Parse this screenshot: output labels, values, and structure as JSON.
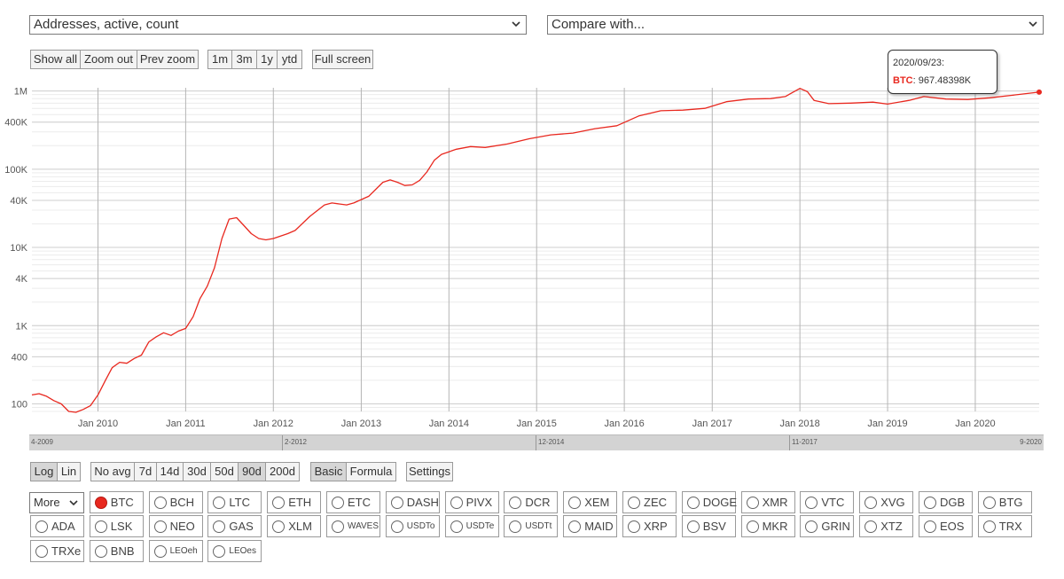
{
  "metric_select": {
    "value": "Addresses, active, count"
  },
  "compare_select": {
    "value": "Compare with..."
  },
  "zoom_buttons": [
    "Show all",
    "Zoom out",
    "Prev zoom"
  ],
  "range_buttons": [
    "1m",
    "3m",
    "1y",
    "ytd"
  ],
  "fullscreen_label": "Full screen",
  "tooltip": {
    "date": "2020/09/23:",
    "series": "BTC",
    "value": "967.48398K"
  },
  "scale_buttons": [
    {
      "label": "Log",
      "active": true
    },
    {
      "label": "Lin",
      "active": false
    }
  ],
  "avg_buttons": [
    {
      "label": "No avg",
      "active": false
    },
    {
      "label": "7d",
      "active": false
    },
    {
      "label": "14d",
      "active": false
    },
    {
      "label": "30d",
      "active": false
    },
    {
      "label": "50d",
      "active": false
    },
    {
      "label": "90d",
      "active": true
    },
    {
      "label": "200d",
      "active": false
    }
  ],
  "mode_buttons": [
    {
      "label": "Basic",
      "active": true
    },
    {
      "label": "Formula",
      "active": false
    }
  ],
  "settings_label": "Settings",
  "more_select": {
    "value": "More"
  },
  "navigator_labels": [
    "4-2009",
    "2-2012",
    "12-2014",
    "11-2017",
    "9-2020"
  ],
  "coins": [
    [
      "BTC",
      "BCH",
      "LTC",
      "ETH",
      "ETC",
      "DASH",
      "PIVX",
      "DCR",
      "XEM",
      "ZEC",
      "DOGE",
      "XMR",
      "VTC",
      "XVG",
      "DGB",
      "BTG"
    ],
    [
      "ADA",
      "LSK",
      "NEO",
      "GAS",
      "XLM",
      "WAVES",
      "USDTo",
      "USDTe",
      "USDTt",
      "MAID",
      "XRP",
      "BSV",
      "MKR",
      "GRIN",
      "XTZ",
      "EOS",
      "TRX"
    ],
    [
      "TRXe",
      "BNB",
      "LEOeh",
      "LEOes"
    ]
  ],
  "selected_coin": "BTC",
  "colors": {
    "series": "#e8281f",
    "grid": "#cfcfcf",
    "minor_grid": "#ececec"
  },
  "chart_data": {
    "type": "line",
    "title": "",
    "xlabel": "",
    "ylabel": "",
    "y_scale": "log",
    "ylim": [
      80,
      1100000
    ],
    "xlim": [
      "2009-04-01",
      "2020-09-23"
    ],
    "y_ticks": [
      {
        "v": 100,
        "label": "100"
      },
      {
        "v": 400,
        "label": "400"
      },
      {
        "v": 1000,
        "label": "1K"
      },
      {
        "v": 4000,
        "label": "4K"
      },
      {
        "v": 10000,
        "label": "10K"
      },
      {
        "v": 40000,
        "label": "40K"
      },
      {
        "v": 100000,
        "label": "100K"
      },
      {
        "v": 400000,
        "label": "400K"
      },
      {
        "v": 1000000,
        "label": "1M"
      }
    ],
    "x_ticks": [
      {
        "date": "2010-01-01",
        "label": "Jan 2010"
      },
      {
        "date": "2011-01-01",
        "label": "Jan 2011"
      },
      {
        "date": "2012-01-01",
        "label": "Jan 2012"
      },
      {
        "date": "2013-01-01",
        "label": "Jan 2013"
      },
      {
        "date": "2014-01-01",
        "label": "Jan 2014"
      },
      {
        "date": "2015-01-01",
        "label": "Jan 2015"
      },
      {
        "date": "2016-01-01",
        "label": "Jan 2016"
      },
      {
        "date": "2017-01-01",
        "label": "Jan 2017"
      },
      {
        "date": "2018-01-01",
        "label": "Jan 2018"
      },
      {
        "date": "2019-01-01",
        "label": "Jan 2019"
      },
      {
        "date": "2020-01-01",
        "label": "Jan 2020"
      }
    ],
    "series": [
      {
        "name": "BTC",
        "color": "#e8281f",
        "points": [
          [
            "2009-04-01",
            130
          ],
          [
            "2009-05-01",
            135
          ],
          [
            "2009-06-01",
            125
          ],
          [
            "2009-07-01",
            110
          ],
          [
            "2009-08-01",
            100
          ],
          [
            "2009-09-01",
            80
          ],
          [
            "2009-10-01",
            78
          ],
          [
            "2009-11-01",
            85
          ],
          [
            "2009-12-01",
            95
          ],
          [
            "2010-01-01",
            130
          ],
          [
            "2010-02-01",
            200
          ],
          [
            "2010-03-01",
            290
          ],
          [
            "2010-04-01",
            340
          ],
          [
            "2010-05-01",
            330
          ],
          [
            "2010-06-01",
            380
          ],
          [
            "2010-07-01",
            420
          ],
          [
            "2010-08-01",
            620
          ],
          [
            "2010-09-01",
            720
          ],
          [
            "2010-10-01",
            810
          ],
          [
            "2010-11-01",
            750
          ],
          [
            "2010-12-01",
            850
          ],
          [
            "2011-01-01",
            920
          ],
          [
            "2011-02-01",
            1300
          ],
          [
            "2011-03-01",
            2200
          ],
          [
            "2011-04-01",
            3200
          ],
          [
            "2011-05-01",
            5500
          ],
          [
            "2011-06-01",
            13000
          ],
          [
            "2011-07-01",
            23000
          ],
          [
            "2011-08-01",
            24000
          ],
          [
            "2011-09-01",
            19000
          ],
          [
            "2011-10-01",
            15000
          ],
          [
            "2011-11-01",
            13000
          ],
          [
            "2011-12-01",
            12500
          ],
          [
            "2012-01-01",
            13000
          ],
          [
            "2012-03-01",
            15000
          ],
          [
            "2012-04-01",
            16500
          ],
          [
            "2012-06-01",
            25000
          ],
          [
            "2012-08-01",
            35000
          ],
          [
            "2012-09-01",
            37000
          ],
          [
            "2012-10-01",
            36000
          ],
          [
            "2012-11-01",
            35000
          ],
          [
            "2012-12-01",
            37000
          ],
          [
            "2013-02-01",
            45000
          ],
          [
            "2013-04-01",
            68000
          ],
          [
            "2013-05-01",
            73000
          ],
          [
            "2013-06-01",
            68000
          ],
          [
            "2013-07-01",
            62000
          ],
          [
            "2013-08-01",
            63000
          ],
          [
            "2013-09-01",
            72000
          ],
          [
            "2013-10-01",
            92000
          ],
          [
            "2013-11-01",
            130000
          ],
          [
            "2013-12-01",
            155000
          ],
          [
            "2014-02-01",
            180000
          ],
          [
            "2014-04-01",
            195000
          ],
          [
            "2014-06-01",
            190000
          ],
          [
            "2014-09-01",
            210000
          ],
          [
            "2014-12-01",
            245000
          ],
          [
            "2015-03-01",
            275000
          ],
          [
            "2015-06-01",
            290000
          ],
          [
            "2015-09-01",
            330000
          ],
          [
            "2015-12-01",
            360000
          ],
          [
            "2016-03-01",
            480000
          ],
          [
            "2016-06-01",
            560000
          ],
          [
            "2016-09-01",
            570000
          ],
          [
            "2016-12-01",
            600000
          ],
          [
            "2017-03-01",
            730000
          ],
          [
            "2017-06-01",
            790000
          ],
          [
            "2017-09-01",
            800000
          ],
          [
            "2017-11-01",
            850000
          ],
          [
            "2018-01-01",
            1080000
          ],
          [
            "2018-02-01",
            980000
          ],
          [
            "2018-03-01",
            760000
          ],
          [
            "2018-05-01",
            690000
          ],
          [
            "2018-08-01",
            700000
          ],
          [
            "2018-11-01",
            720000
          ],
          [
            "2019-01-01",
            680000
          ],
          [
            "2019-04-01",
            760000
          ],
          [
            "2019-06-01",
            850000
          ],
          [
            "2019-09-01",
            790000
          ],
          [
            "2019-12-01",
            780000
          ],
          [
            "2020-03-01",
            820000
          ],
          [
            "2020-06-01",
            880000
          ],
          [
            "2020-09-23",
            967484
          ]
        ]
      }
    ]
  }
}
